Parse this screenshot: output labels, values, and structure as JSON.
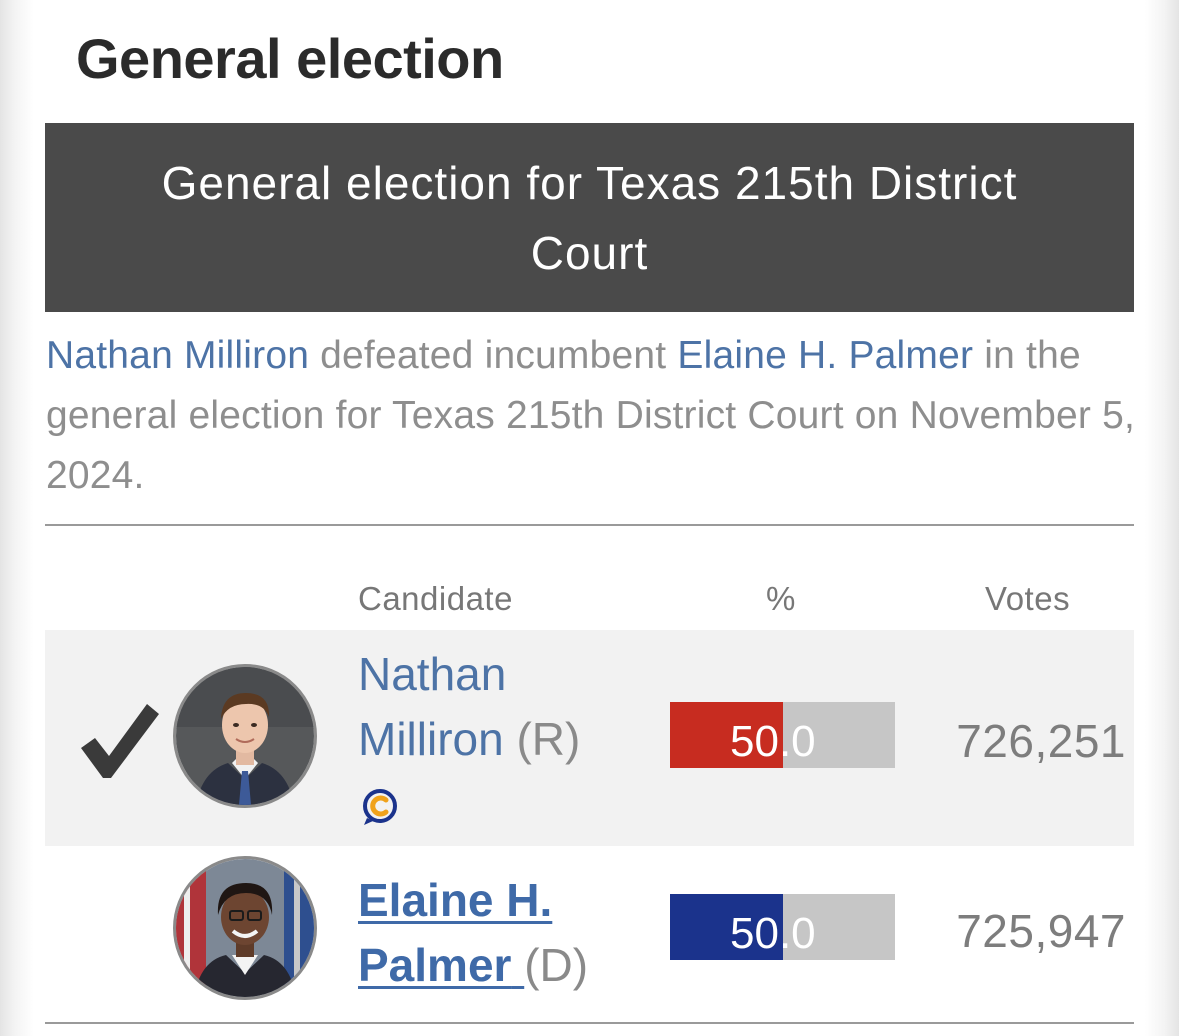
{
  "section": {
    "title": "General election"
  },
  "race": {
    "header": "General election for Texas 215th District Court",
    "summary": {
      "winner": "Nathan Milliron",
      "text1": " defeated incumbent ",
      "incumbent": "Elaine H. Palmer",
      "text2": " in the general election for Texas 215th District Court on November 5, 2024."
    }
  },
  "table": {
    "headers": {
      "candidate": "Candidate",
      "percent": "%",
      "votes": "Votes"
    },
    "rows": [
      {
        "first_name": "Nathan",
        "last_name": "Milliron",
        "party": "(R)",
        "percent": 50.0,
        "percent_label": "50.0",
        "votes": "726,251",
        "winner": true,
        "bar_color": "#c72c20",
        "has_badge": true,
        "badge_icon": "ballotpedia-c-icon"
      },
      {
        "first_name": "Elaine H.",
        "last_name": "Palmer",
        "party": "(D)",
        "percent": 50.0,
        "percent_label": "50.0",
        "votes": "725,947",
        "winner": false,
        "bar_color": "#1b338c",
        "has_badge": false
      }
    ]
  },
  "colors": {
    "header_bg": "#4a4a4a",
    "link": "#4d73a6",
    "winner_row_bg": "#f2f2f2",
    "bar_track": "#c6c6c6"
  }
}
